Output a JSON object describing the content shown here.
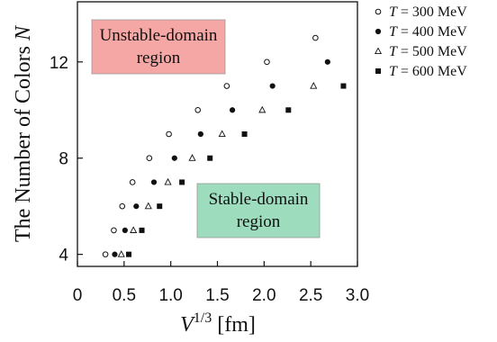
{
  "chart_data": {
    "type": "scatter",
    "title": "",
    "xlabel_base": "V",
    "xlabel_exp": "1/3",
    "xlabel_unit": "[fm]",
    "ylabel": "The Number of Colors ",
    "ylabel_var": "N",
    "xlim": [
      0,
      3.0
    ],
    "ylim": [
      3.5,
      14.5
    ],
    "xticks": [
      "0",
      "0.5",
      "1.0",
      "1.5",
      "2.0",
      "2.5",
      "3.0"
    ],
    "yticks": [
      "4",
      "8",
      "12"
    ],
    "legend_position": "outside-top-right",
    "grid": false,
    "series": [
      {
        "name": "T = 300 MeV",
        "name_var": "T",
        "name_rest": " = 300 MeV",
        "marker": "open-circle",
        "x": [
          0.3,
          0.39,
          0.48,
          0.59,
          0.77,
          0.98,
          1.29,
          1.6,
          2.03,
          2.55
        ],
        "y": [
          4,
          5,
          6,
          7,
          8,
          9,
          10,
          11,
          12,
          13
        ]
      },
      {
        "name": "T = 400 MeV",
        "name_var": "T",
        "name_rest": " = 400 MeV",
        "marker": "filled-circle",
        "x": [
          0.4,
          0.51,
          0.63,
          0.82,
          1.04,
          1.32,
          1.66,
          2.09,
          2.68
        ],
        "y": [
          4,
          5,
          6,
          7,
          8,
          9,
          10,
          11,
          12
        ]
      },
      {
        "name": "T = 500 MeV",
        "name_var": "T",
        "name_rest": " = 500 MeV",
        "marker": "open-triangle",
        "x": [
          0.47,
          0.6,
          0.76,
          0.97,
          1.23,
          1.55,
          1.98,
          2.53
        ],
        "y": [
          4,
          5,
          6,
          7,
          8,
          9,
          10,
          11
        ]
      },
      {
        "name": "T = 600 MeV",
        "name_var": "T",
        "name_rest": " = 600 MeV",
        "marker": "filled-square",
        "x": [
          0.55,
          0.69,
          0.88,
          1.12,
          1.42,
          1.79,
          2.26,
          2.85
        ],
        "y": [
          4,
          5,
          6,
          7,
          8,
          9,
          10,
          11
        ]
      }
    ],
    "annotations": [
      {
        "lines": [
          "Unstable-domain",
          "region"
        ],
        "color": "#f4a7a4"
      },
      {
        "lines": [
          "Stable-domain",
          "region"
        ],
        "color": "#9ddcbc"
      }
    ]
  }
}
